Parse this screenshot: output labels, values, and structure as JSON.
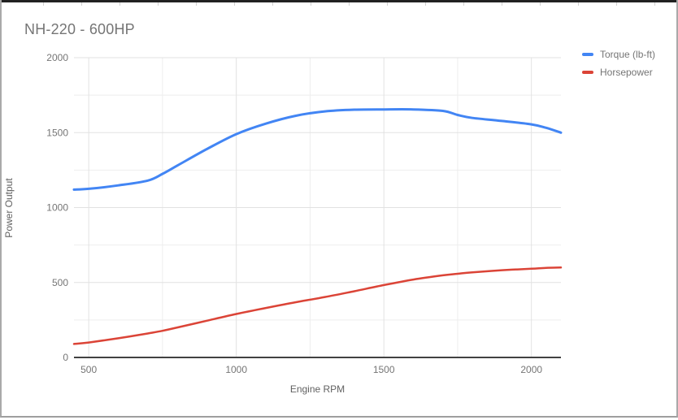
{
  "window": {
    "top_edge_color": "#212121",
    "border_color": "#9e9e9e",
    "background": "#ffffff"
  },
  "chart_data": {
    "type": "line",
    "title": "NH-220 - 600HP",
    "title_color": "#757575",
    "xlabel": "Engine RPM",
    "ylabel": "Power Output",
    "axis_title_color": "#616161",
    "tick_label_color": "#757575",
    "grid_major_color": "#e2e2e2",
    "grid_minor_color": "#ededed",
    "axis_line_color": "#424242",
    "legend_position": "right",
    "xlim": [
      450,
      2100
    ],
    "ylim": [
      0,
      2000
    ],
    "x_major_ticks": [
      500,
      1000,
      1500,
      2000
    ],
    "x_minor_ticks": [
      750,
      1250,
      1750
    ],
    "y_major_ticks": [
      0,
      500,
      1000,
      1500,
      2000
    ],
    "y_minor_ticks": [
      250,
      750,
      1250,
      1750
    ],
    "x": [
      450,
      500,
      600,
      700,
      750,
      800,
      900,
      1000,
      1100,
      1200,
      1300,
      1400,
      1500,
      1600,
      1700,
      1750,
      1800,
      1900,
      2000,
      2050,
      2100
    ],
    "series": [
      {
        "name": "Torque (lb-ft)",
        "color": "#4285f4",
        "stroke_width": 3,
        "values": [
          1120,
          1125,
          1148,
          1180,
          1225,
          1280,
          1390,
          1490,
          1560,
          1612,
          1642,
          1653,
          1655,
          1655,
          1645,
          1618,
          1598,
          1578,
          1555,
          1532,
          1500
        ]
      },
      {
        "name": "Horsepower",
        "color": "#db4437",
        "stroke_width": 2.5,
        "values": [
          90,
          100,
          128,
          160,
          178,
          200,
          245,
          290,
          330,
          368,
          403,
          442,
          483,
          520,
          548,
          558,
          568,
          582,
          592,
          598,
          600
        ]
      }
    ]
  }
}
